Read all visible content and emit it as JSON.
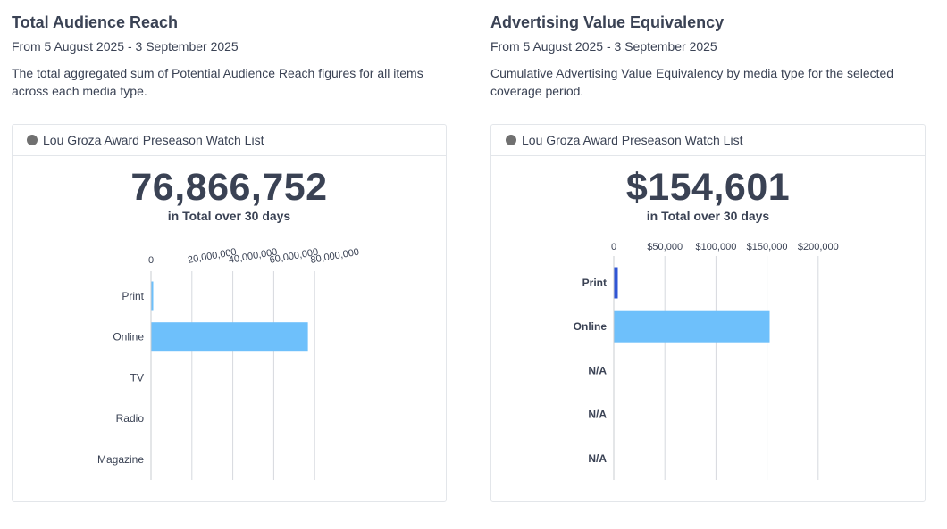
{
  "panels": [
    {
      "title": "Total Audience Reach",
      "date_range": "From 5 August 2025 - 3 September 2025",
      "description": "The total aggregated sum of Potential Audience Reach figures for all items across each media type.",
      "card_label": "Lou Groza Award Preseason Watch List",
      "total": "76,866,752",
      "total_caption": "in Total over 30 days"
    },
    {
      "title": "Advertising Value Equivalency",
      "date_range": "From 5 August 2025 - 3 September 2025",
      "description": "Cumulative Advertising Value Equivalency by media type for the selected coverage period.",
      "card_label": "Lou Groza Award Preseason Watch List",
      "total": "$154,601",
      "total_caption": "in Total over 30 days"
    }
  ],
  "chart_data": [
    {
      "type": "bar",
      "orientation": "horizontal",
      "title": "Total Audience Reach",
      "categories": [
        "Print",
        "Online",
        "TV",
        "Radio",
        "Magazine"
      ],
      "values": [
        400000,
        76466752,
        0,
        0,
        0
      ],
      "ticks": [
        0,
        20000000,
        40000000,
        60000000,
        80000000
      ],
      "tick_labels": [
        "0",
        "20,000,000",
        "40,000,000",
        "60,000,000",
        "80,000,000"
      ],
      "xlim": [
        0,
        80000000
      ],
      "colors": [
        "#6ec0fb",
        "#6ec0fb",
        "#6ec0fb",
        "#6ec0fb",
        "#6ec0fb"
      ],
      "grid": true
    },
    {
      "type": "bar",
      "orientation": "horizontal",
      "title": "Advertising Value Equivalency",
      "categories": [
        "Print",
        "Online",
        "N/A",
        "N/A",
        "N/A"
      ],
      "values": [
        2500,
        152101,
        0,
        0,
        0
      ],
      "ticks": [
        0,
        50000,
        100000,
        150000,
        200000
      ],
      "tick_labels": [
        "0",
        "$50,000",
        "$100,000",
        "$150,000",
        "$200,000"
      ],
      "xlim": [
        0,
        200000
      ],
      "colors": [
        "#2f55d4",
        "#6ec0fb",
        "#6ec0fb",
        "#6ec0fb",
        "#6ec0fb"
      ],
      "grid": true
    }
  ]
}
